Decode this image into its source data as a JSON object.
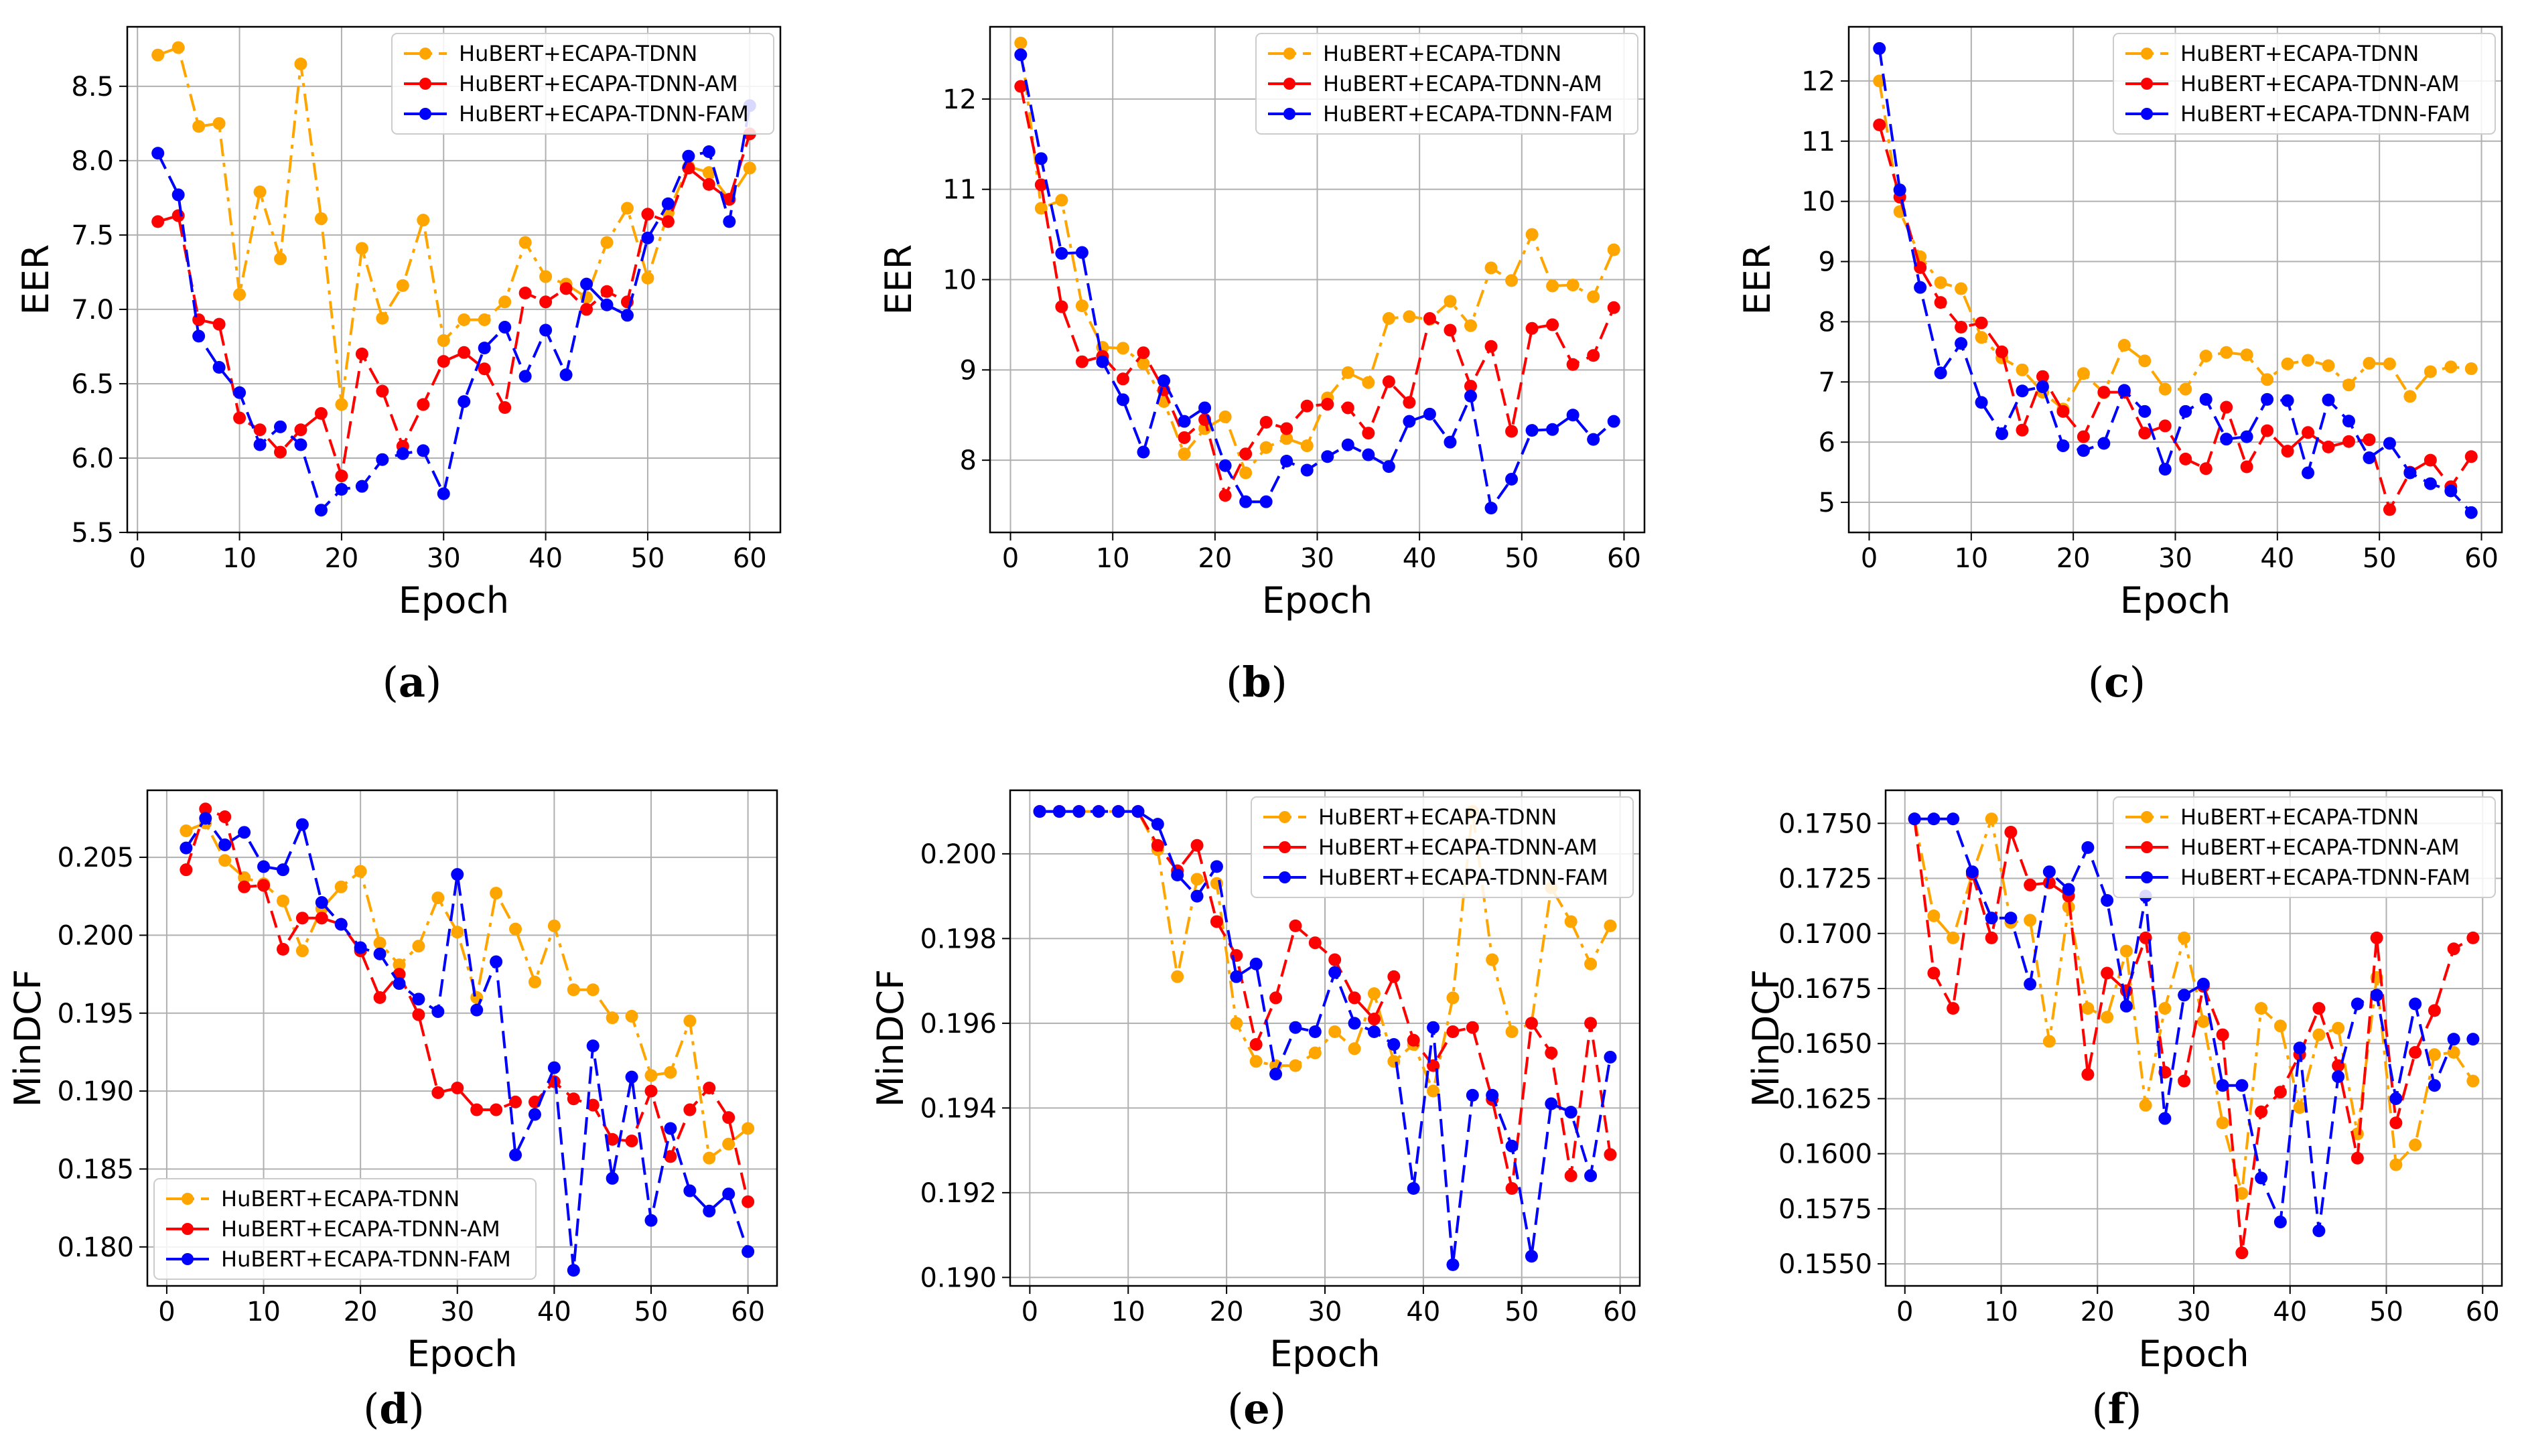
{
  "chart_data": [
    {
      "type": "line",
      "panel_label": "a",
      "xlabel": "Epoch",
      "ylabel": "EER",
      "xlim": [
        -1,
        63
      ],
      "ylim": [
        5.5,
        8.9
      ],
      "xticks": [
        0,
        10,
        20,
        30,
        40,
        50,
        60
      ],
      "yticks": [
        5.5,
        6.0,
        6.5,
        7.0,
        7.5,
        8.0,
        8.5
      ],
      "ytick_decimals": 1,
      "grid": true,
      "legend_position": "top-right",
      "x": [
        2,
        4,
        6,
        8,
        10,
        12,
        14,
        16,
        18,
        20,
        22,
        24,
        26,
        28,
        30,
        32,
        34,
        36,
        38,
        40,
        42,
        44,
        46,
        48,
        50,
        52,
        54,
        56,
        58,
        60
      ],
      "series": [
        {
          "name": "HuBERT+ECAPA-TDNN",
          "color": "#FFA500",
          "linestyle": "dashdot",
          "values": [
            8.71,
            8.76,
            8.23,
            8.25,
            7.1,
            7.79,
            7.34,
            8.65,
            7.61,
            6.36,
            7.41,
            6.94,
            7.16,
            7.6,
            6.79,
            6.93,
            6.93,
            7.05,
            7.45,
            7.22,
            7.17,
            7.08,
            7.45,
            7.68,
            7.21,
            7.65,
            7.96,
            7.92,
            7.74,
            7.95
          ]
        },
        {
          "name": "HuBERT+ECAPA-TDNN-AM",
          "color": "#FF0000",
          "linestyle": "dashed",
          "values": [
            7.59,
            7.63,
            6.93,
            6.9,
            6.27,
            6.19,
            6.04,
            6.19,
            6.3,
            5.88,
            6.7,
            6.45,
            6.08,
            6.36,
            6.65,
            6.71,
            6.6,
            6.34,
            7.11,
            7.05,
            7.14,
            7.0,
            7.12,
            7.05,
            7.64,
            7.59,
            7.95,
            7.84,
            7.74,
            8.18
          ]
        },
        {
          "name": "HuBERT+ECAPA-TDNN-FAM",
          "color": "#0000FF",
          "linestyle": "dashed",
          "values": [
            8.05,
            7.77,
            6.82,
            6.61,
            6.44,
            6.09,
            6.21,
            6.09,
            5.65,
            5.79,
            5.81,
            5.99,
            6.03,
            6.05,
            5.76,
            6.38,
            6.74,
            6.88,
            6.55,
            6.86,
            6.56,
            7.17,
            7.03,
            6.96,
            7.48,
            7.71,
            8.03,
            8.06,
            7.59,
            8.37
          ]
        }
      ]
    },
    {
      "type": "line",
      "panel_label": "b",
      "xlabel": "Epoch",
      "ylabel": "EER",
      "xlim": [
        -2,
        62
      ],
      "ylim": [
        7.2,
        12.8
      ],
      "xticks": [
        0,
        10,
        20,
        30,
        40,
        50,
        60
      ],
      "yticks": [
        8,
        9,
        10,
        11,
        12
      ],
      "ytick_decimals": 0,
      "grid": true,
      "legend_position": "top-right",
      "x": [
        1,
        3,
        5,
        7,
        9,
        11,
        13,
        15,
        17,
        19,
        21,
        23,
        25,
        27,
        29,
        31,
        33,
        35,
        37,
        39,
        41,
        43,
        45,
        47,
        49,
        51,
        53,
        55,
        57,
        59
      ],
      "series": [
        {
          "name": "HuBERT+ECAPA-TDNN",
          "color": "#FFA500",
          "linestyle": "dashdot",
          "values": [
            12.62,
            10.79,
            10.88,
            9.71,
            9.25,
            9.24,
            9.07,
            8.65,
            8.07,
            8.35,
            8.48,
            7.86,
            8.14,
            8.24,
            8.16,
            8.69,
            8.97,
            8.86,
            9.57,
            9.59,
            9.56,
            9.76,
            9.49,
            10.13,
            9.99,
            10.5,
            9.93,
            9.94,
            9.81,
            10.33
          ]
        },
        {
          "name": "HuBERT+ECAPA-TDNN-AM",
          "color": "#FF0000",
          "linestyle": "dashed",
          "values": [
            12.14,
            11.05,
            9.7,
            9.09,
            9.15,
            8.9,
            9.19,
            8.78,
            8.25,
            8.45,
            7.61,
            8.07,
            8.42,
            8.35,
            8.6,
            8.62,
            8.58,
            8.3,
            8.87,
            8.64,
            9.57,
            9.44,
            8.82,
            9.26,
            8.32,
            9.46,
            9.5,
            9.06,
            9.16,
            9.69
          ]
        },
        {
          "name": "HuBERT+ECAPA-TDNN-FAM",
          "color": "#0000FF",
          "linestyle": "dashed",
          "values": [
            12.49,
            11.34,
            10.29,
            10.3,
            9.09,
            8.67,
            8.09,
            8.88,
            8.43,
            8.58,
            7.94,
            7.54,
            7.54,
            7.99,
            7.89,
            8.04,
            8.17,
            8.06,
            7.93,
            8.43,
            8.51,
            8.2,
            8.71,
            7.47,
            7.79,
            8.33,
            8.34,
            8.5,
            8.23,
            8.43
          ]
        }
      ]
    },
    {
      "type": "line",
      "panel_label": "c",
      "xlabel": "Epoch",
      "ylabel": "EER",
      "xlim": [
        -2,
        62
      ],
      "ylim": [
        4.5,
        12.9
      ],
      "xticks": [
        0,
        10,
        20,
        30,
        40,
        50,
        60
      ],
      "yticks": [
        5,
        6,
        7,
        8,
        9,
        10,
        11,
        12
      ],
      "ytick_decimals": 0,
      "grid": true,
      "legend_position": "top-right",
      "x": [
        1,
        3,
        5,
        7,
        9,
        11,
        13,
        15,
        17,
        19,
        21,
        23,
        25,
        27,
        29,
        31,
        33,
        35,
        37,
        39,
        41,
        43,
        45,
        47,
        49,
        51,
        53,
        55,
        57,
        59
      ],
      "series": [
        {
          "name": "HuBERT+ECAPA-TDNN",
          "color": "#FFA500",
          "linestyle": "dashdot",
          "values": [
            12.0,
            9.83,
            9.08,
            8.65,
            8.55,
            7.74,
            7.4,
            7.2,
            6.83,
            6.55,
            7.14,
            6.82,
            7.61,
            7.35,
            6.88,
            6.88,
            7.43,
            7.49,
            7.45,
            7.04,
            7.3,
            7.36,
            7.27,
            6.95,
            7.31,
            7.3,
            6.76,
            7.17,
            7.25,
            7.22
          ]
        },
        {
          "name": "HuBERT+ECAPA-TDNN-AM",
          "color": "#FF0000",
          "linestyle": "dashed",
          "values": [
            11.27,
            10.07,
            8.9,
            8.32,
            7.91,
            7.98,
            7.5,
            6.2,
            7.09,
            6.51,
            6.09,
            6.83,
            6.83,
            6.15,
            6.27,
            5.72,
            5.56,
            6.58,
            5.59,
            6.19,
            5.85,
            6.16,
            5.92,
            6.01,
            6.04,
            4.88,
            5.5,
            5.7,
            5.26,
            5.76
          ]
        },
        {
          "name": "HuBERT+ECAPA-TDNN-FAM",
          "color": "#0000FF",
          "linestyle": "dashed",
          "values": [
            12.54,
            10.19,
            8.57,
            7.15,
            7.64,
            6.66,
            6.14,
            6.85,
            6.92,
            5.94,
            5.86,
            5.98,
            6.86,
            6.51,
            5.55,
            6.51,
            6.71,
            6.05,
            6.09,
            6.71,
            6.69,
            5.49,
            6.7,
            6.35,
            5.74,
            5.98,
            5.49,
            5.31,
            5.19,
            4.83
          ]
        }
      ]
    },
    {
      "type": "line",
      "panel_label": "d",
      "xlabel": "Epoch",
      "ylabel": "MinDCF",
      "xlim": [
        -2,
        63
      ],
      "ylim": [
        0.1775,
        0.2093
      ],
      "xticks": [
        0,
        10,
        20,
        30,
        40,
        50,
        60
      ],
      "yticks": [
        0.18,
        0.185,
        0.19,
        0.195,
        0.2,
        0.205
      ],
      "ytick_decimals": 3,
      "grid": true,
      "legend_position": "bottom-left",
      "x": [
        2,
        4,
        6,
        8,
        10,
        12,
        14,
        16,
        18,
        20,
        22,
        24,
        26,
        28,
        30,
        32,
        34,
        36,
        38,
        40,
        42,
        44,
        46,
        48,
        50,
        52,
        54,
        56,
        58,
        60
      ],
      "series": [
        {
          "name": "HuBERT+ECAPA-TDNN",
          "color": "#FFA500",
          "linestyle": "dashdot",
          "values": [
            0.2067,
            0.2072,
            0.2048,
            0.2037,
            0.2033,
            0.2022,
            0.199,
            0.2017,
            0.2031,
            0.2041,
            0.1995,
            0.1981,
            0.1993,
            0.2024,
            0.2002,
            0.196,
            0.2027,
            0.2004,
            0.197,
            0.2006,
            0.1965,
            0.1965,
            0.1947,
            0.1948,
            0.191,
            0.1912,
            0.1945,
            0.1857,
            0.1866,
            0.1876
          ]
        },
        {
          "name": "HuBERT+ECAPA-TDNN-AM",
          "color": "#FF0000",
          "linestyle": "dashed",
          "values": [
            0.2042,
            0.2081,
            0.2076,
            0.2031,
            0.2032,
            0.1991,
            0.2011,
            0.2011,
            0.2007,
            0.199,
            0.196,
            0.1975,
            0.1949,
            0.1899,
            0.1902,
            0.1888,
            0.1888,
            0.1893,
            0.1893,
            0.1906,
            0.1895,
            0.1891,
            0.1869,
            0.1868,
            0.19,
            0.1858,
            0.1888,
            0.1902,
            0.1883,
            0.1829
          ]
        },
        {
          "name": "HuBERT+ECAPA-TDNN-FAM",
          "color": "#0000FF",
          "linestyle": "dashed",
          "values": [
            0.2056,
            0.2075,
            0.2058,
            0.2066,
            0.2044,
            0.2042,
            0.2071,
            0.2021,
            0.2007,
            0.1992,
            0.1988,
            0.1969,
            0.1959,
            0.1951,
            0.2039,
            0.1952,
            0.1983,
            0.1859,
            0.1885,
            0.1915,
            0.1785,
            0.1929,
            0.1844,
            0.1909,
            0.1817,
            0.1876,
            0.1836,
            0.1823,
            0.1834,
            0.1797
          ]
        }
      ]
    },
    {
      "type": "line",
      "panel_label": "e",
      "xlabel": "Epoch",
      "ylabel": "MinDCF",
      "xlim": [
        -2,
        62
      ],
      "ylim": [
        0.1898,
        0.2015
      ],
      "xticks": [
        0,
        10,
        20,
        30,
        40,
        50,
        60
      ],
      "yticks": [
        0.19,
        0.192,
        0.194,
        0.196,
        0.198,
        0.2
      ],
      "ytick_decimals": 3,
      "grid": true,
      "legend_position": "top-right",
      "x": [
        1,
        3,
        5,
        7,
        9,
        11,
        13,
        15,
        17,
        19,
        21,
        23,
        25,
        27,
        29,
        31,
        33,
        35,
        37,
        39,
        41,
        43,
        45,
        47,
        49,
        51,
        53,
        55,
        57,
        59
      ],
      "series": [
        {
          "name": "HuBERT+ECAPA-TDNN",
          "color": "#FFA500",
          "linestyle": "dashdot",
          "values": [
            0.201,
            0.201,
            0.201,
            0.201,
            0.201,
            0.201,
            0.2001,
            0.1971,
            0.1994,
            0.1993,
            0.196,
            0.1951,
            0.195,
            0.195,
            0.1953,
            0.1958,
            0.1954,
            0.1967,
            0.1951,
            0.1955,
            0.1944,
            0.1966,
            0.201,
            0.1975,
            0.1958,
            0.196,
            0.1992,
            0.1984,
            0.1974,
            0.1983
          ]
        },
        {
          "name": "HuBERT+ECAPA-TDNN-AM",
          "color": "#FF0000",
          "linestyle": "dashed",
          "values": [
            0.201,
            0.201,
            0.201,
            0.201,
            0.201,
            0.201,
            0.2002,
            0.1996,
            0.2002,
            0.1984,
            0.1976,
            0.1955,
            0.1966,
            0.1983,
            0.1979,
            0.1975,
            0.1966,
            0.1961,
            0.1971,
            0.1956,
            0.195,
            0.1958,
            0.1959,
            0.1942,
            0.1921,
            0.196,
            0.1953,
            0.1924,
            0.196,
            0.1929
          ]
        },
        {
          "name": "HuBERT+ECAPA-TDNN-FAM",
          "color": "#0000FF",
          "linestyle": "dashed",
          "values": [
            0.201,
            0.201,
            0.201,
            0.201,
            0.201,
            0.201,
            0.2007,
            0.1995,
            0.199,
            0.1997,
            0.1971,
            0.1974,
            0.1948,
            0.1959,
            0.1958,
            0.1972,
            0.196,
            0.1958,
            0.1955,
            0.1921,
            0.1959,
            0.1903,
            0.1943,
            0.1943,
            0.1931,
            0.1905,
            0.1941,
            0.1939,
            0.1924,
            0.1952
          ]
        }
      ]
    },
    {
      "type": "line",
      "panel_label": "f",
      "xlabel": "Epoch",
      "ylabel": "MinDCF",
      "xlim": [
        -2,
        62
      ],
      "ylim": [
        0.154,
        0.1765
      ],
      "xticks": [
        0,
        10,
        20,
        30,
        40,
        50,
        60
      ],
      "yticks": [
        0.155,
        0.1575,
        0.16,
        0.1625,
        0.165,
        0.1675,
        0.17,
        0.1725,
        0.175
      ],
      "ytick_decimals": 4,
      "grid": true,
      "legend_position": "top-right",
      "x": [
        1,
        3,
        5,
        7,
        9,
        11,
        13,
        15,
        17,
        19,
        21,
        23,
        25,
        27,
        29,
        31,
        33,
        35,
        37,
        39,
        41,
        43,
        45,
        47,
        49,
        51,
        53,
        55,
        57,
        59
      ],
      "series": [
        {
          "name": "HuBERT+ECAPA-TDNN",
          "color": "#FFA500",
          "linestyle": "dashdot",
          "values": [
            0.1752,
            0.1708,
            0.1698,
            0.1727,
            0.1752,
            0.1705,
            0.1706,
            0.1651,
            0.1712,
            0.1666,
            0.1662,
            0.1692,
            0.1622,
            0.1666,
            0.1698,
            0.166,
            0.1614,
            0.1582,
            0.1666,
            0.1658,
            0.1621,
            0.1654,
            0.1657,
            0.1609,
            0.168,
            0.1595,
            0.1604,
            0.1645,
            0.1646,
            0.1633
          ]
        },
        {
          "name": "HuBERT+ECAPA-TDNN-AM",
          "color": "#FF0000",
          "linestyle": "dashed",
          "values": [
            0.1752,
            0.1682,
            0.1666,
            0.1727,
            0.1698,
            0.1746,
            0.1722,
            0.1723,
            0.1717,
            0.1636,
            0.1682,
            0.1674,
            0.1698,
            0.1637,
            0.1633,
            0.1676,
            0.1654,
            0.1555,
            0.1619,
            0.1628,
            0.1645,
            0.1666,
            0.164,
            0.1598,
            0.1698,
            0.1614,
            0.1646,
            0.1665,
            0.1693,
            0.1698
          ]
        },
        {
          "name": "HuBERT+ECAPA-TDNN-FAM",
          "color": "#0000FF",
          "linestyle": "dashed",
          "values": [
            0.1752,
            0.1752,
            0.1752,
            0.1728,
            0.1707,
            0.1707,
            0.1677,
            0.1728,
            0.172,
            0.1739,
            0.1715,
            0.1667,
            0.1717,
            0.1616,
            0.1672,
            0.1677,
            0.1631,
            0.1631,
            0.1589,
            0.1569,
            0.1648,
            0.1565,
            0.1635,
            0.1668,
            0.1672,
            0.1625,
            0.1668,
            0.1631,
            0.1652,
            0.1652
          ]
        }
      ]
    }
  ]
}
